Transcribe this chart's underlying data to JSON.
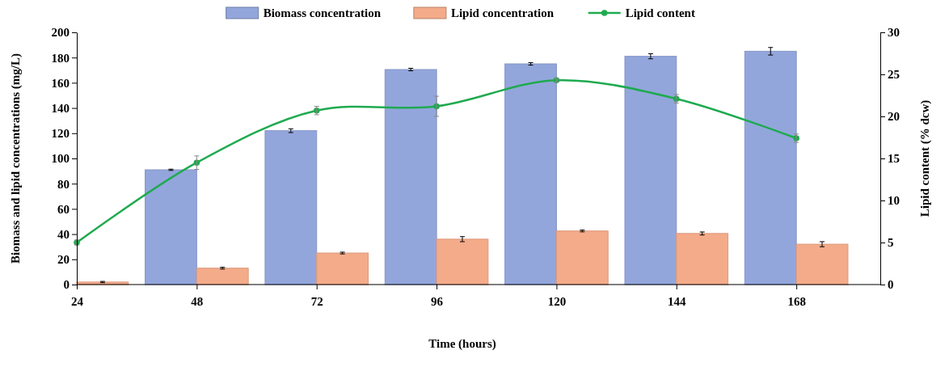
{
  "chart_data": {
    "type": "bar",
    "xlabel": "Time (hours)",
    "ylabel": "Biomass and lipid concentrations (mg/L)",
    "y2label": "Lipid content (% dcw)",
    "categories": [
      "24",
      "48",
      "72",
      "96",
      "120",
      "144",
      "168"
    ],
    "series": [
      {
        "name": "Biomass concentration",
        "color": "#93a6dc",
        "values": [
          0,
          91,
          122,
          170.5,
          175,
          181,
          185
        ],
        "errors": [
          null,
          0.5,
          1.5,
          1,
          1,
          2,
          3
        ]
      },
      {
        "name": "Lipid concentration",
        "color": "#f4ab8a",
        "values": [
          2,
          13,
          25,
          36,
          42.5,
          40.5,
          32
        ],
        "errors": [
          0.5,
          0.7,
          0.7,
          2,
          0.7,
          1.2,
          2
        ]
      },
      {
        "name": "Lipid content",
        "type": "line",
        "axis": "y2",
        "color": "#1faa4f",
        "marker": "circle",
        "values": [
          5,
          14.5,
          20.7,
          21.2,
          24.3,
          22.1,
          17.4
        ],
        "errors": [
          0.3,
          0.8,
          0.5,
          1.2,
          0.2,
          0.5,
          0.5
        ]
      }
    ],
    "ylim": [
      0,
      200
    ],
    "yticks": [
      0,
      20,
      40,
      60,
      80,
      100,
      120,
      140,
      160,
      180,
      200
    ],
    "y2lim": [
      0,
      30
    ],
    "y2ticks": [
      0,
      5,
      10,
      15,
      20,
      25,
      30
    ],
    "grid": false,
    "legend": "top"
  }
}
